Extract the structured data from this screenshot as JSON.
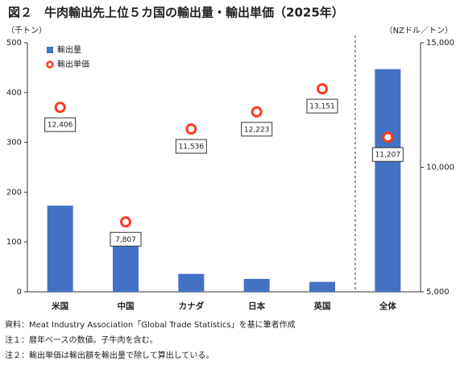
{
  "chart_data": {
    "type": "bar",
    "title": "図２　牛肉輸出先上位５カ国の輸出量・輸出単価（2025年）",
    "y_axis_label": "（千トン）",
    "y2_axis_label": "（NZドル／トン）",
    "categories": [
      "米国",
      "中国",
      "カナダ",
      "日本",
      "英国",
      "全体"
    ],
    "series": [
      {
        "name": "輸出量",
        "color": "#4472c4",
        "values": [
          173,
          112,
          36,
          26,
          20,
          447
        ]
      },
      {
        "name": "輸出単価",
        "type": "scatter",
        "axis": "y2",
        "color": "#ff3b1f",
        "values": [
          12406,
          7807,
          11536,
          12223,
          13151,
          11207
        ],
        "value_labels": [
          "12,406",
          "7,807",
          "11,536",
          "12,223",
          "13,151",
          "11,207"
        ]
      }
    ],
    "ylim": [
      0,
      500
    ],
    "yticks": [
      0,
      100,
      200,
      300,
      400,
      500
    ],
    "y2lim": [
      5000,
      15000
    ],
    "y2ticks": [
      {
        "value": 5000,
        "label": "5,000"
      },
      {
        "value": 10000,
        "label": "10,000"
      },
      {
        "value": 15000,
        "label": "15,000"
      }
    ],
    "notes": [
      "資料：Meat Industry Association「Global Trade Statistics」を基に筆者作成",
      "注１：暦年ベースの数値。子牛肉を含む。",
      "注２：輸出単価は輸出額を輸出量で除して算出している。"
    ]
  }
}
